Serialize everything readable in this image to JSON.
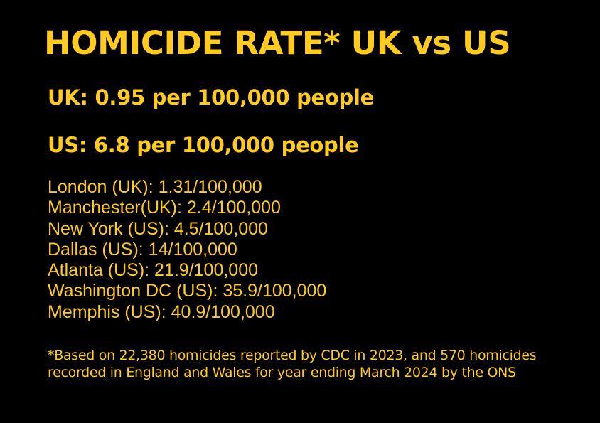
{
  "colors": {
    "background": "#000000",
    "text": "#FFCB1F"
  },
  "title": "HOMICIDE RATE* UK vs US",
  "stats": {
    "uk": "UK: 0.95 per 100,000 people",
    "us": "US: 6.8 per 100,000 people"
  },
  "cities": [
    "London (UK): 1.31/100,000",
    "Manchester(UK): 2.4/100,000",
    "New York (US): 4.5/100,000",
    "Dallas (US): 14/100,000",
    "Atlanta (US): 21.9/100,000",
    "Washington DC (US): 35.9/100,000",
    "Memphis (US): 40.9/100,000"
  ],
  "footnote": "*Based on 22,380 homicides reported by CDC in 2023, and 570 homicides recorded in England and Wales for year ending March 2024 by the ONS"
}
